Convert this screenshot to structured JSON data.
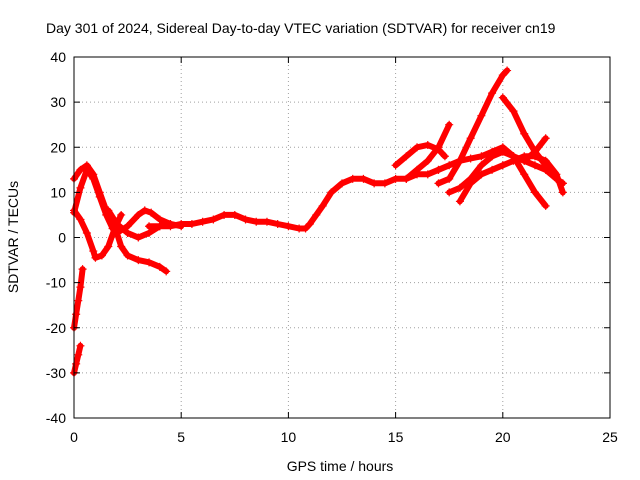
{
  "chart_data": {
    "type": "scatter",
    "title": "Day 301 of 2024, Sidereal Day-to-day VTEC variation (SDTVAR) for receiver cn19",
    "xlabel": "GPS time / hours",
    "ylabel": "SDTVAR / TECUs",
    "xlim": [
      0,
      25
    ],
    "ylim": [
      -40,
      40
    ],
    "xticks": [
      "0",
      "5",
      "10",
      "15",
      "20",
      "25"
    ],
    "yticks": [
      "-40",
      "-30",
      "-20",
      "-10",
      "0",
      "10",
      "20",
      "30",
      "40"
    ],
    "grid": true,
    "marker": "+",
    "color": "#ff0000",
    "series": [
      {
        "name": "t1",
        "x": [
          0.0,
          0.3,
          0.6,
          0.9,
          1.2,
          1.5,
          1.8,
          2.0,
          2.5,
          3.0,
          3.3,
          3.6,
          4.0,
          4.5,
          5.0
        ],
        "y": [
          5.5,
          11,
          15,
          13,
          9,
          5,
          2,
          1,
          2.5,
          5,
          6,
          5.5,
          4,
          3,
          2.5
        ]
      },
      {
        "name": "t2",
        "x": [
          0.0,
          0.3,
          0.6,
          0.9,
          1.2,
          1.5,
          1.8,
          2.0,
          2.2,
          2.5,
          3.0,
          3.5,
          4.0,
          4.3
        ],
        "y": [
          13,
          15,
          16,
          14,
          10,
          6,
          3,
          1,
          -2,
          -4,
          -5,
          -5.5,
          -6.5,
          -7.5
        ]
      },
      {
        "name": "t3",
        "x": [
          0.0,
          0.3,
          0.6,
          0.9,
          1.0,
          1.3,
          1.6,
          1.9,
          2.2
        ],
        "y": [
          6,
          4,
          1,
          -3,
          -4.5,
          -4,
          -2,
          2,
          5
        ]
      },
      {
        "name": "t4",
        "x": [
          1.6,
          2.0,
          2.5,
          3.0,
          3.5,
          4.0,
          4.5
        ],
        "y": [
          6,
          3,
          1,
          0,
          1,
          2.5,
          3
        ]
      },
      {
        "name": "t5",
        "x": [
          0.0,
          0.1,
          0.2,
          0.3,
          0.4
        ],
        "y": [
          -20,
          -17,
          -14,
          -11,
          -7
        ]
      },
      {
        "name": "t6",
        "x": [
          0.0,
          0.1,
          0.2,
          0.3
        ],
        "y": [
          -30,
          -28,
          -26,
          -24
        ]
      },
      {
        "name": "main",
        "x": [
          3.5,
          4.0,
          4.5,
          5.0,
          5.5,
          6.0,
          6.5,
          7.0,
          7.5,
          8.0,
          8.5,
          9.0,
          9.5,
          10.0,
          10.5,
          10.8,
          11.0,
          11.3,
          11.6,
          12.0,
          12.5,
          13.0,
          13.5,
          14.0,
          14.5,
          15.0,
          15.5,
          16.0,
          16.5,
          17.0
        ],
        "y": [
          2.5,
          2.5,
          2.5,
          3,
          3,
          3.5,
          4,
          5,
          5,
          4,
          3.5,
          3.5,
          3,
          2.5,
          2,
          2,
          3,
          5,
          7,
          10,
          12,
          13,
          13,
          12,
          12,
          13,
          13,
          14,
          14,
          15
        ]
      },
      {
        "name": "e1",
        "x": [
          17.0,
          17.5,
          18.0,
          18.5,
          19.0,
          19.5,
          20.0,
          20.2
        ],
        "y": [
          12,
          13,
          17,
          22,
          27,
          32,
          36,
          37
        ]
      },
      {
        "name": "e2",
        "x": [
          20.0,
          20.5,
          21.0,
          21.5,
          22.0,
          22.5,
          22.8
        ],
        "y": [
          31,
          28,
          23,
          19,
          16,
          13,
          12
        ]
      },
      {
        "name": "e3",
        "x": [
          15.0,
          15.5,
          16.0,
          16.5,
          17.0,
          17.3
        ],
        "y": [
          16,
          18,
          20,
          20.5,
          19.5,
          18
        ]
      },
      {
        "name": "e4",
        "x": [
          15.5,
          16.0,
          16.5,
          17.0,
          17.5
        ],
        "y": [
          13,
          15,
          17,
          20,
          25
        ]
      },
      {
        "name": "e5",
        "x": [
          17.5,
          18.0,
          18.5,
          19.0,
          19.5,
          20.0,
          20.5,
          21.0,
          21.5,
          22.0,
          22.5,
          22.8
        ],
        "y": [
          10,
          11,
          13,
          16,
          18,
          19,
          18,
          17,
          16,
          15,
          13,
          12
        ]
      },
      {
        "name": "e6",
        "x": [
          17.0,
          17.5,
          18.0,
          18.5,
          19.0,
          19.5,
          20.0,
          20.5,
          21.0,
          21.5,
          22.0
        ],
        "y": [
          15,
          16,
          17,
          17.5,
          18,
          19,
          20,
          18,
          14,
          10,
          7
        ]
      },
      {
        "name": "e7",
        "x": [
          18.0,
          18.5,
          19.0,
          19.5,
          20.0,
          20.5,
          21.0,
          21.5,
          22.0,
          22.5,
          22.8
        ],
        "y": [
          8,
          12,
          14,
          15,
          16,
          17,
          18,
          18,
          17,
          14,
          10
        ]
      },
      {
        "name": "e8",
        "x": [
          21.0,
          21.5,
          22.0
        ],
        "y": [
          17,
          19,
          22
        ]
      }
    ]
  }
}
